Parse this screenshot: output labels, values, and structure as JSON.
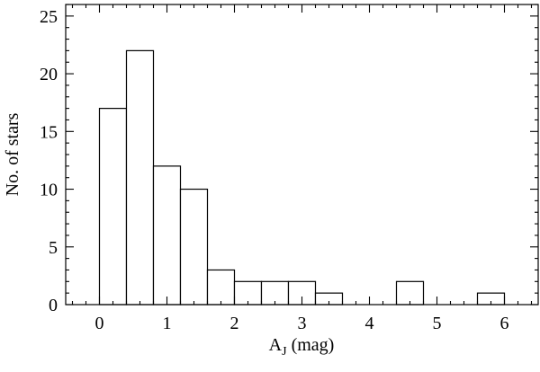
{
  "chart_data": {
    "type": "bar",
    "histogram": true,
    "bins": [
      {
        "x0": 0.0,
        "x1": 0.4,
        "count": 17
      },
      {
        "x0": 0.4,
        "x1": 0.8,
        "count": 22
      },
      {
        "x0": 0.8,
        "x1": 1.2,
        "count": 12
      },
      {
        "x0": 1.2,
        "x1": 1.6,
        "count": 10
      },
      {
        "x0": 1.6,
        "x1": 2.0,
        "count": 3
      },
      {
        "x0": 2.0,
        "x1": 2.4,
        "count": 2
      },
      {
        "x0": 2.4,
        "x1": 2.8,
        "count": 2
      },
      {
        "x0": 2.8,
        "x1": 3.2,
        "count": 2
      },
      {
        "x0": 3.2,
        "x1": 3.6,
        "count": 1
      },
      {
        "x0": 4.4,
        "x1": 4.8,
        "count": 2
      },
      {
        "x0": 5.6,
        "x1": 6.0,
        "count": 1
      }
    ],
    "xlabel_main": "A",
    "xlabel_sub": "J",
    "xlabel_rest": " (mag)",
    "ylabel": "No. of stars",
    "xlim": [
      -0.5,
      6.5
    ],
    "ylim": [
      0,
      26
    ],
    "xticks": [
      "0",
      "1",
      "2",
      "3",
      "4",
      "5",
      "6"
    ],
    "yticks": [
      "0",
      "5",
      "10",
      "15",
      "20",
      "25"
    ],
    "grid": false,
    "bar_fill": "#ffffff",
    "bar_stroke": "#000000"
  }
}
